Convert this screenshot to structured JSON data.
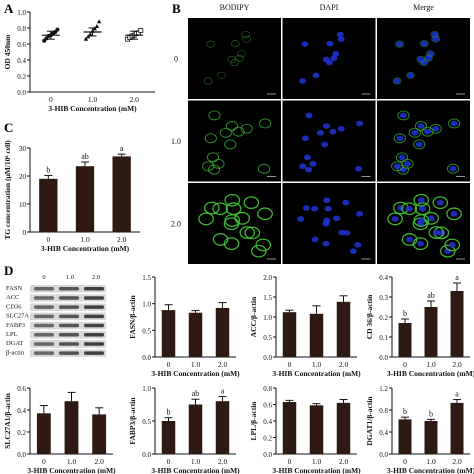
{
  "panels": {
    "A": "A",
    "B": "B",
    "C": "C",
    "D": "D"
  },
  "micro": {
    "columns": [
      "BODIPY",
      "DAPI",
      "Merge"
    ],
    "rows": [
      "0",
      "1.0",
      "2.0"
    ],
    "colors": {
      "cell_bg": "#000000",
      "bodipy": "#3fbf35",
      "dapi": "#2034d8"
    }
  },
  "blot": {
    "concentrations": [
      "0",
      "1.0",
      "2.0"
    ],
    "bands": [
      "FASN",
      "ACC",
      "CD36",
      "SLC27A1",
      "FABP3",
      "LPL",
      "DGAT",
      "β-actin"
    ]
  },
  "chart_data": [
    {
      "id": "A",
      "type": "scatter",
      "ylabel": "OD 450nm",
      "xlabel": "3-HIB Concentration (mM)",
      "categories": [
        "0",
        "1.0",
        "2.0"
      ],
      "ylim": [
        0.0,
        1.0
      ],
      "yticks": [
        "0.0",
        "0.2",
        "0.4",
        "0.6",
        "0.8",
        "1.0"
      ],
      "markers": [
        "circle",
        "triangle",
        "square"
      ],
      "means": [
        0.71,
        0.75,
        0.71
      ],
      "points": [
        [
          0.64,
          0.67,
          0.7,
          0.71,
          0.73,
          0.75,
          0.78
        ],
        [
          0.66,
          0.69,
          0.72,
          0.76,
          0.79,
          0.82,
          0.88
        ],
        [
          0.66,
          0.68,
          0.7,
          0.71,
          0.73,
          0.74,
          0.77
        ]
      ]
    },
    {
      "id": "C",
      "type": "bar",
      "ylabel": "TG concentration (μM/10⁶ cell)",
      "xlabel": "3-HIB Concentration (mM)",
      "categories": [
        "0",
        "1.0",
        "2.0"
      ],
      "values": [
        19.0,
        23.5,
        27.0
      ],
      "errors": [
        1.2,
        1.5,
        0.8
      ],
      "letters": [
        "b",
        "ab",
        "a"
      ],
      "ylim": [
        0,
        30
      ],
      "yticks": [
        "0",
        "10",
        "20",
        "30"
      ]
    },
    {
      "id": "FASN",
      "type": "bar",
      "ylabel": "FASN/β-actin",
      "xlabel": "3-HIB Concentration (mM)",
      "categories": [
        "0",
        "1.0",
        "2.0"
      ],
      "values": [
        0.88,
        0.83,
        0.92
      ],
      "errors": [
        0.1,
        0.04,
        0.1
      ],
      "letters": [
        "",
        "",
        ""
      ],
      "ylim": [
        0,
        1.5
      ],
      "yticks": [
        "0.0",
        "0.5",
        "1.0",
        "1.5"
      ]
    },
    {
      "id": "ACC",
      "type": "bar",
      "ylabel": "ACC/β-actin",
      "xlabel": "3-HIB Concentration (mM)",
      "categories": [
        "0",
        "1.0",
        "2.0"
      ],
      "values": [
        1.12,
        1.08,
        1.38
      ],
      "errors": [
        0.05,
        0.2,
        0.15
      ],
      "letters": [
        "",
        "",
        ""
      ],
      "ylim": [
        0,
        2.0
      ],
      "yticks": [
        "0.0",
        "0.5",
        "1.0",
        "1.5",
        "2.0"
      ]
    },
    {
      "id": "CD36",
      "type": "bar",
      "ylabel": "CD 36/β-actin",
      "xlabel": "3-HIB Concentration (mM)",
      "categories": [
        "0",
        "1.0",
        "2.0"
      ],
      "values": [
        0.17,
        0.25,
        0.33
      ],
      "errors": [
        0.02,
        0.03,
        0.04
      ],
      "letters": [
        "b",
        "ab",
        "a"
      ],
      "ylim": [
        0,
        0.4
      ],
      "yticks": [
        "0.0",
        "0.1",
        "0.2",
        "0.3",
        "0.4"
      ]
    },
    {
      "id": "SLC27A1",
      "type": "bar",
      "ylabel": "SLC27A1/β-actin",
      "xlabel": "3-HIB Concentration (mM)",
      "categories": [
        "0",
        "1.0",
        "2.0"
      ],
      "values": [
        0.37,
        0.48,
        0.36
      ],
      "errors": [
        0.07,
        0.08,
        0.06
      ],
      "letters": [
        "",
        "",
        ""
      ],
      "ylim": [
        0,
        0.6
      ],
      "yticks": [
        "0.0",
        "0.2",
        "0.4",
        "0.6"
      ]
    },
    {
      "id": "FABP3",
      "type": "bar",
      "ylabel": "FABP3/β-actin",
      "xlabel": "3-HIB Concentration (mM)",
      "categories": [
        "0",
        "1.0",
        "2.0"
      ],
      "values": [
        0.5,
        0.75,
        0.8
      ],
      "errors": [
        0.05,
        0.08,
        0.07
      ],
      "letters": [
        "b",
        "ab",
        "a"
      ],
      "ylim": [
        0,
        1.0
      ],
      "yticks": [
        "0.0",
        "0.5",
        "1.0"
      ]
    },
    {
      "id": "LPL",
      "type": "bar",
      "ylabel": "LPL/β-actin",
      "xlabel": "3-HIB Concentration (mM)",
      "categories": [
        "0",
        "1.0",
        "2.0"
      ],
      "values": [
        0.63,
        0.59,
        0.62
      ],
      "errors": [
        0.02,
        0.02,
        0.04
      ],
      "letters": [
        "",
        "",
        ""
      ],
      "ylim": [
        0,
        0.8
      ],
      "yticks": [
        "0.0",
        "0.2",
        "0.4",
        "0.6",
        "0.8"
      ]
    },
    {
      "id": "DGAT",
      "type": "bar",
      "ylabel": "DGAT1/β-actin",
      "xlabel": "3-HIB Concentration (mM)",
      "categories": [
        "0",
        "1.0",
        "2.0"
      ],
      "values": [
        0.63,
        0.6,
        0.93
      ],
      "errors": [
        0.04,
        0.03,
        0.06
      ],
      "letters": [
        "b",
        "b",
        "a"
      ],
      "ylim": [
        0,
        1.2
      ],
      "yticks": [
        "0.0",
        "0.4",
        "0.8",
        "1.2"
      ]
    }
  ]
}
